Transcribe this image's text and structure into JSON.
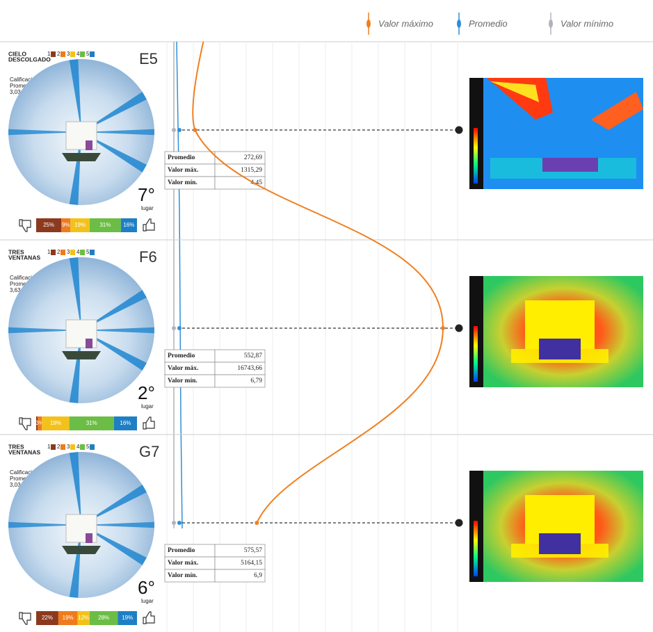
{
  "legend": [
    "Valor máximo",
    "Promedio",
    "Valor mínimo"
  ],
  "panels": [
    {
      "category": [
        "CIELO",
        "DESCOLGADO"
      ],
      "scale": [
        "1",
        "2",
        "3",
        "4",
        "5"
      ],
      "code": "E5",
      "rating_label": [
        "Calificación",
        "Promedio:"
      ],
      "rating": "3,03",
      "rank": "7°",
      "rank_label": "lugar",
      "segments": [
        {
          "value": 25,
          "label": "25%"
        },
        {
          "value": 9,
          "label": "9%"
        },
        {
          "value": 19,
          "label": "19%"
        },
        {
          "value": 31,
          "label": "31%"
        },
        {
          "value": 16,
          "label": "16%"
        }
      ],
      "stats": [
        [
          "Promedio",
          "272,69"
        ],
        [
          "Valor máx.",
          "1315,29"
        ],
        [
          "Valor mín.",
          "4,45"
        ]
      ],
      "heatmap": "cool"
    },
    {
      "category": [
        "TRES",
        "VENTANAS"
      ],
      "scale": [
        "1",
        "2",
        "3",
        "4",
        "5"
      ],
      "code": "F6",
      "rating_label": [
        "Calificación",
        "Promedio:"
      ],
      "rating": "3,63",
      "rank": "2°",
      "rank_label": "lugar",
      "segments": [
        {
          "value": 1,
          "label": null
        },
        {
          "value": 3,
          "label": "3%"
        },
        {
          "value": 19,
          "label": "19%"
        },
        {
          "value": 31,
          "label": "31%"
        },
        {
          "value": 16,
          "label": "16%"
        }
      ],
      "stats": [
        [
          "Promedio",
          "552,87"
        ],
        [
          "Valor máx.",
          "16743,66"
        ],
        [
          "Valor mín.",
          "6,79"
        ]
      ],
      "heatmap": "warm"
    },
    {
      "category": [
        "TRES",
        "VENTANAS"
      ],
      "scale": [
        "1",
        "2",
        "3",
        "4",
        "5"
      ],
      "code": "G7",
      "rating_label": [
        "Calificación",
        "Promedio:"
      ],
      "rating": "3,03",
      "rank": "6°",
      "rank_label": "lugar",
      "segments": [
        {
          "value": 22,
          "label": "22%"
        },
        {
          "value": 19,
          "label": "19%"
        },
        {
          "value": 12,
          "label": "12%"
        },
        {
          "value": 28,
          "label": "28%"
        },
        {
          "value": 19,
          "label": "19%"
        }
      ],
      "stats": [
        [
          "Promedio",
          "575,57"
        ],
        [
          "Valor máx.",
          "5164,15"
        ],
        [
          "Valor mín.",
          "6,9"
        ]
      ],
      "heatmap": "warm"
    }
  ]
}
